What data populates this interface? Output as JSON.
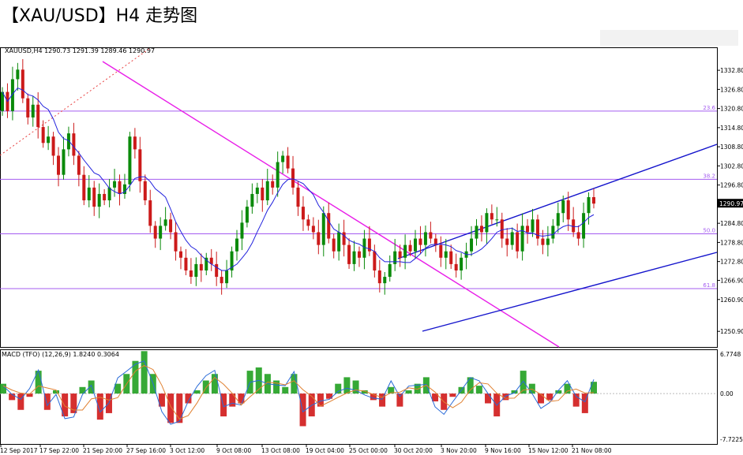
{
  "page": {
    "title": "【XAU/USD】H4 走势图"
  },
  "chart_data": [
    {
      "type": "candlestick",
      "title": "XAUUSD,H4",
      "ohlc_header": "XAUUSD,H4  1290.73 1291.39 1289.46 1290.97",
      "current_price": 1290.97,
      "current_price_label": "1290.97",
      "ylim": [
        1246,
        1340
      ],
      "y_ticks": [
        1332.8,
        1326.8,
        1320.8,
        1314.8,
        1308.8,
        1302.8,
        1296.8,
        1290.97,
        1284.8,
        1278.8,
        1272.8,
        1266.9,
        1260.9,
        1250.9
      ],
      "y_tick_labels": [
        "1332.80",
        "1326.80",
        "1320.80",
        "1314.80",
        "1308.80",
        "1302.80",
        "1296.80",
        "1290.97",
        "1284.80",
        "1278.80",
        "1272.80",
        "1266.90",
        "1260.90",
        "1250.90"
      ],
      "x_tick_labels": [
        "12 Sep 2017",
        "17 Sep 22:00",
        "21 Sep 20:00",
        "27 Sep 16:00",
        "3 Oct 12:00",
        "9 Oct 08:00",
        "13 Oct 08:00",
        "19 Oct 04:00",
        "25 Oct 00:00",
        "30 Oct 20:00",
        "3 Nov 20:00",
        "9 Nov 16:00",
        "15 Nov 12:00",
        "21 Nov 08:00"
      ],
      "fib_levels": [
        {
          "label": "23.6",
          "value": 1320.0
        },
        {
          "label": "38.2",
          "value": 1298.6
        },
        {
          "label": "50.0",
          "value": 1281.5
        },
        {
          "label": "61.8",
          "value": 1264.3
        }
      ],
      "close_path": [
        1326,
        1320,
        1330,
        1333,
        1324,
        1318,
        1322,
        1315,
        1310,
        1312,
        1306,
        1300,
        1308,
        1313,
        1306,
        1300,
        1292,
        1296,
        1290,
        1294,
        1292,
        1296,
        1298,
        1294,
        1297,
        1312,
        1308,
        1298,
        1292,
        1284,
        1280,
        1284,
        1286,
        1282,
        1276,
        1274,
        1270,
        1268,
        1272,
        1270,
        1274,
        1272,
        1268,
        1266,
        1270,
        1276,
        1280,
        1285,
        1290,
        1294,
        1296,
        1292,
        1298,
        1296,
        1304,
        1306,
        1302,
        1296,
        1290,
        1286,
        1284,
        1282,
        1278,
        1288,
        1280,
        1276,
        1282,
        1278,
        1272,
        1276,
        1274,
        1280,
        1276,
        1270,
        1266,
        1268,
        1272,
        1276,
        1274,
        1278,
        1276,
        1280,
        1278,
        1282,
        1280,
        1278,
        1274,
        1276,
        1272,
        1270,
        1274,
        1276,
        1280,
        1284,
        1282,
        1288,
        1286,
        1286,
        1280,
        1278,
        1282,
        1276,
        1284,
        1282,
        1286,
        1280,
        1278,
        1280,
        1284,
        1288,
        1292,
        1286,
        1282,
        1280,
        1288,
        1293,
        1290.97
      ]
    },
    {
      "type": "histogram",
      "title": "MACD (TFO) (12,26,9) 1.8240 0.3064",
      "ylim": [
        -7.7225,
        6.7748
      ],
      "y_tick_labels": [
        "6.7748",
        "0.00",
        "-7.7225"
      ],
      "histogram_values": [
        1.5,
        -1,
        -2.5,
        -0.5,
        3.5,
        -2.5,
        0.5,
        -3.5,
        -3,
        1,
        2,
        -4,
        -3,
        1.5,
        3,
        5,
        6.5,
        3,
        -2,
        -4.5,
        -4.5,
        -1.5,
        0.5,
        2,
        3,
        -3.5,
        -2,
        -1.5,
        3.5,
        4,
        3,
        2,
        1,
        3,
        -5,
        -3.5,
        -2,
        -0.8,
        1.5,
        2.5,
        2,
        0.5,
        -1,
        -2,
        1,
        -2,
        0.5,
        1.5,
        2.5,
        -1.2,
        -2.5,
        -0.5,
        1,
        2.5,
        1.2,
        -1.5,
        -3.5,
        -1,
        0.5,
        3.5,
        1.5,
        -1.5,
        -1,
        0.5,
        1.5,
        -2,
        -3,
        1.8
      ]
    }
  ],
  "colors": {
    "bull_candle": "#0a8a0a",
    "bear_candle": "#cc1a1a",
    "fib_line": "#a45cf0",
    "trendline": "#e81ee8",
    "channel": "#1414cc",
    "moving_average": "#2222dd",
    "macd_line": "#2a6bd8",
    "signal_line": "#e08030"
  }
}
